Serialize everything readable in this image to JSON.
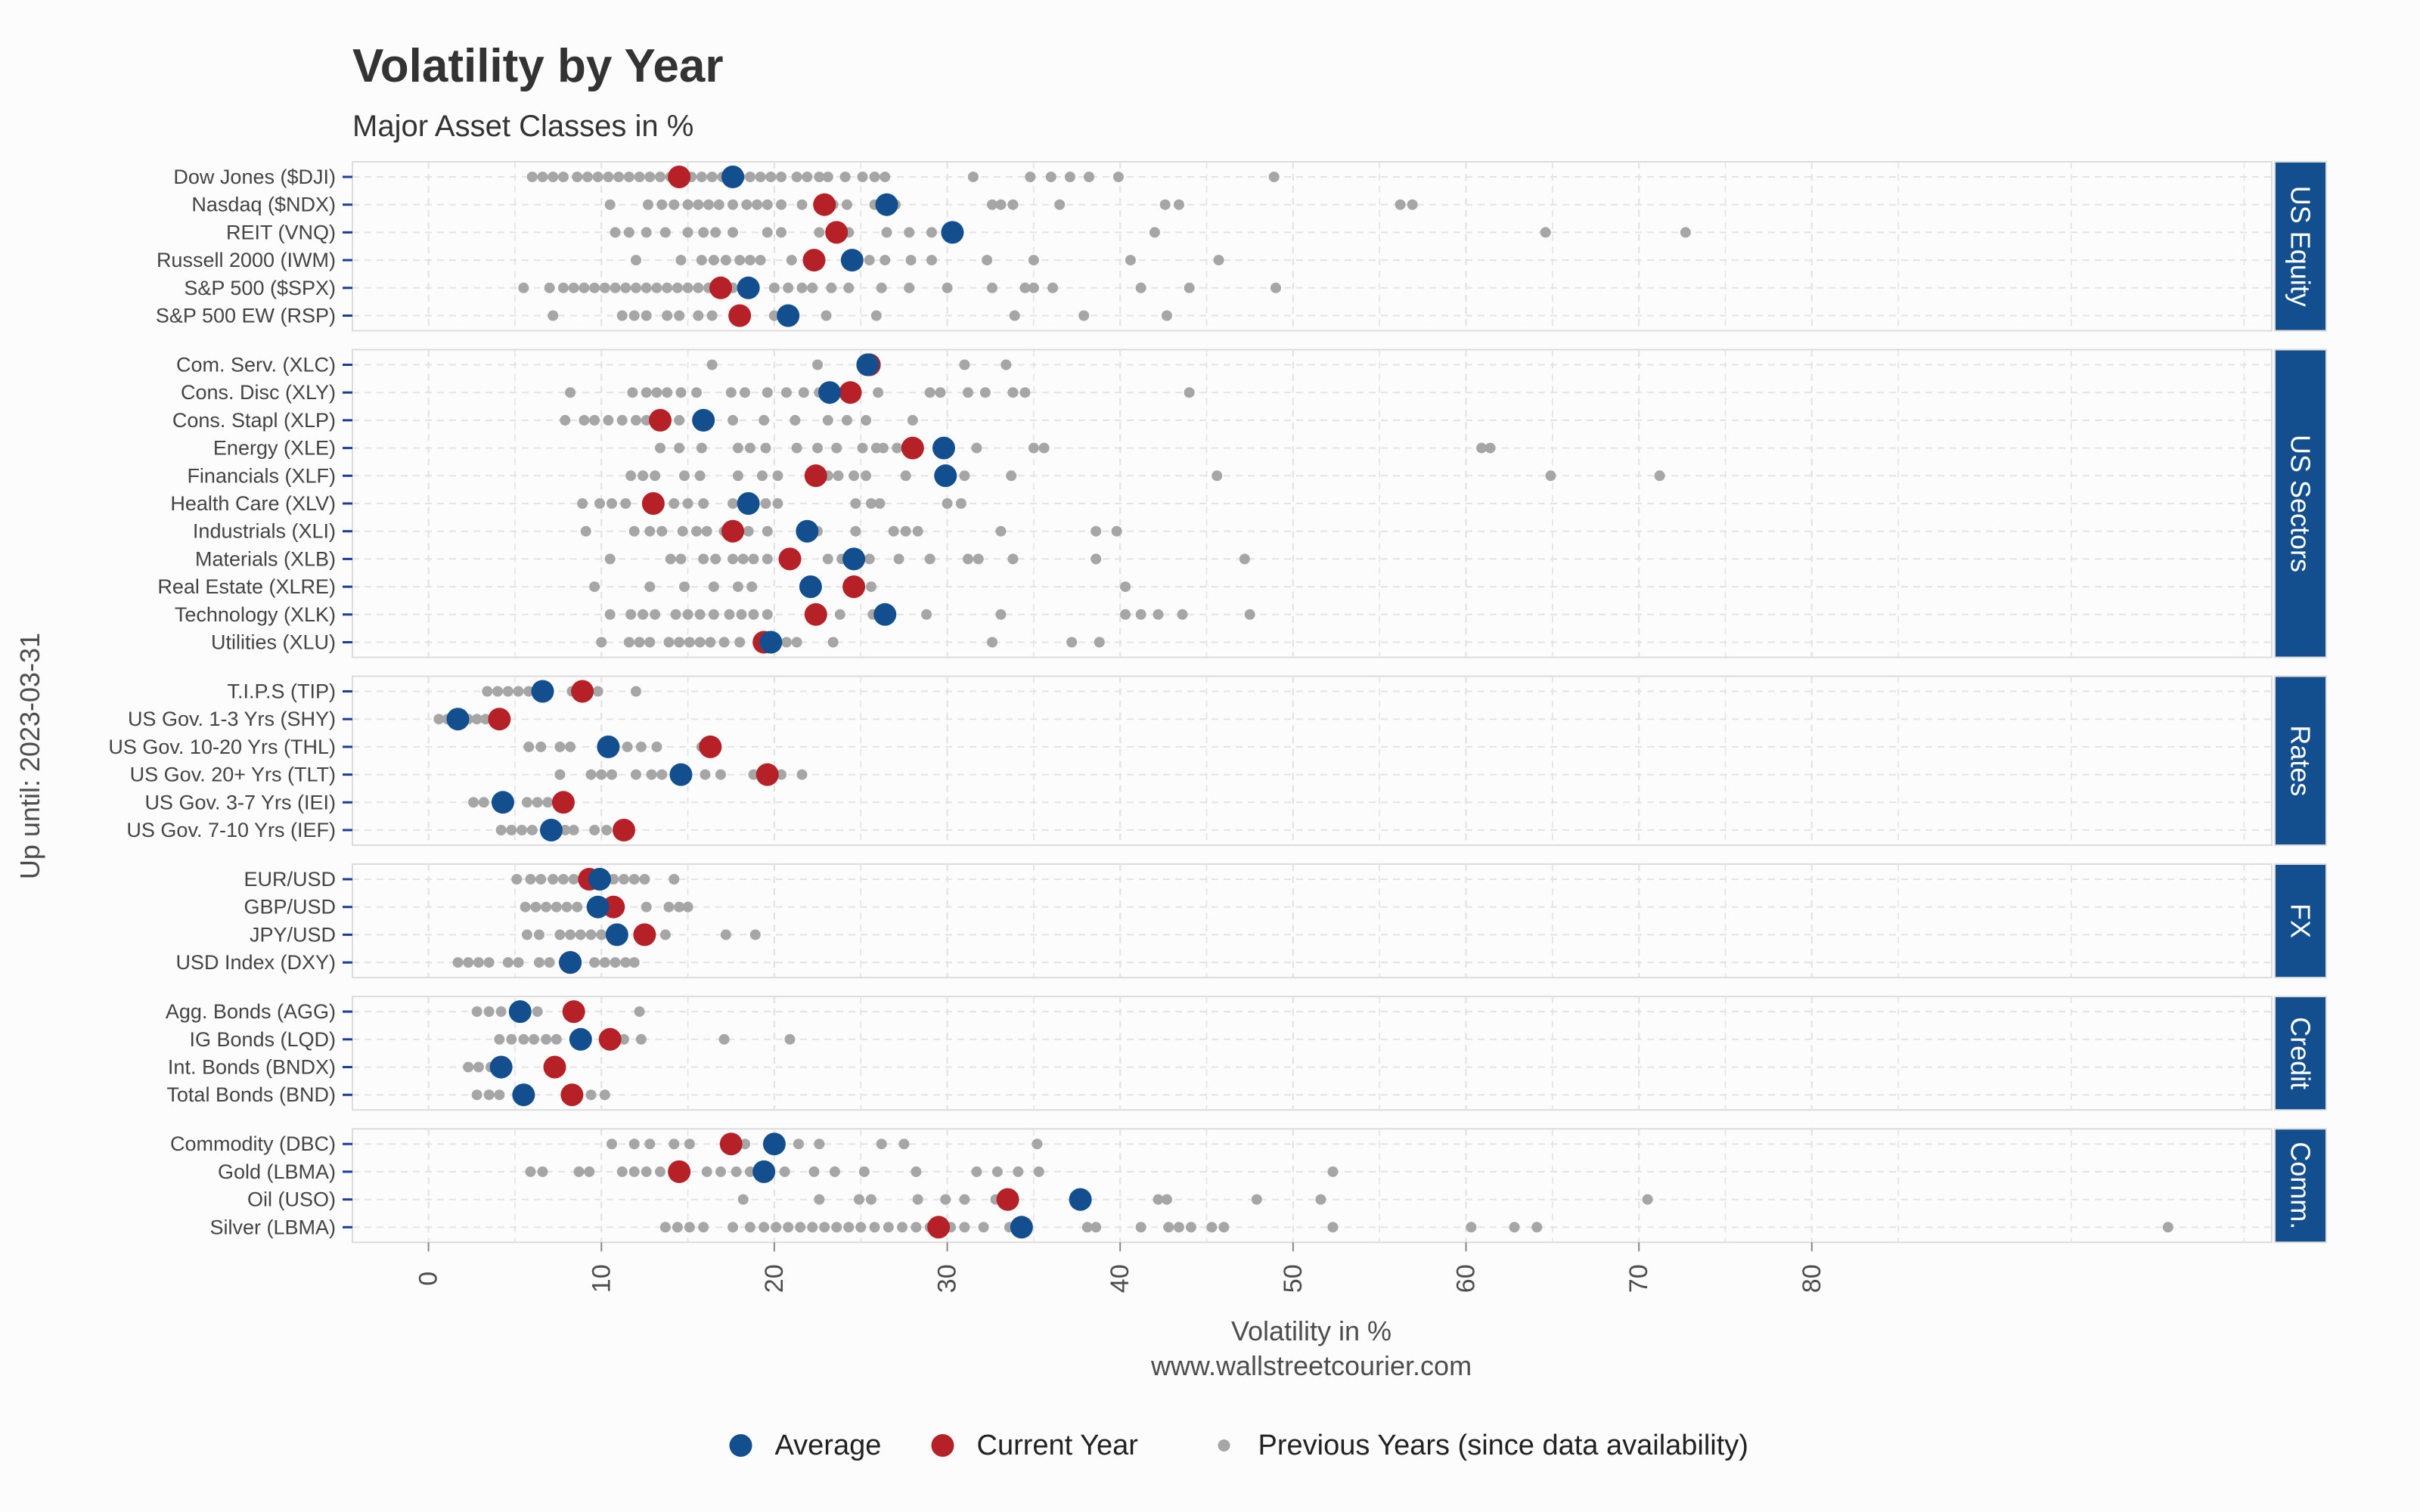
{
  "chart_data": {
    "type": "scatter",
    "title": "Volatility by Year",
    "subtitle": "Major Asset Classes in %",
    "xlabel": "Volatility in %",
    "caption": "www.wallstreetcourier.com",
    "ylabel": "Up until: 2023-03-31",
    "xlim": [
      -4.4,
      106.6
    ],
    "xticks": [
      0,
      10,
      20,
      30,
      40,
      50,
      60,
      70,
      80
    ],
    "grid": true,
    "legend_position": "bottom",
    "colors": {
      "average": "#134e8f",
      "current": "#b62127",
      "previous": "#a6a6a6",
      "strip": "#134e8f"
    },
    "legend": [
      {
        "key": "average",
        "label": "Average"
      },
      {
        "key": "current",
        "label": "Current Year"
      },
      {
        "key": "previous",
        "label": "Previous Years (since data availability)"
      }
    ],
    "panels": [
      {
        "name": "US Equity",
        "items": [
          {
            "label": "Dow Jones ($DJI)",
            "average": 17.6,
            "current": 14.5,
            "previous": [
              6.0,
              6.6,
              7.2,
              7.8,
              8.6,
              9.2,
              9.8,
              10.4,
              11.0,
              11.6,
              12.2,
              12.8,
              13.4,
              14.0,
              14.6,
              15.2,
              15.8,
              16.4,
              17.0,
              18.0,
              18.6,
              19.2,
              19.8,
              20.4,
              21.3,
              21.9,
              22.6,
              23.1,
              24.1,
              25.1,
              25.8,
              26.4,
              31.5,
              34.8,
              36.0,
              37.1,
              38.2,
              39.9,
              48.9
            ]
          },
          {
            "label": "Nasdaq ($NDX)",
            "average": 26.5,
            "current": 22.9,
            "previous": [
              10.5,
              12.7,
              13.5,
              14.2,
              15.0,
              15.6,
              16.2,
              16.8,
              17.6,
              18.4,
              19.0,
              19.6,
              20.4,
              21.6,
              22.6,
              23.4,
              24.2,
              25.8,
              27.0,
              32.6,
              33.1,
              33.8,
              36.5,
              42.6,
              43.4,
              56.2,
              56.9
            ]
          },
          {
            "label": "REIT (VNQ)",
            "average": 30.3,
            "current": 23.6,
            "previous": [
              10.8,
              11.6,
              12.6,
              13.7,
              15.0,
              15.9,
              16.6,
              17.6,
              19.6,
              20.4,
              22.6,
              24.3,
              26.5,
              27.8,
              29.1,
              42.0,
              64.6,
              72.7
            ]
          },
          {
            "label": "Russell 2000 (IWM)",
            "average": 24.5,
            "current": 22.3,
            "previous": [
              12.0,
              14.6,
              15.8,
              16.5,
              17.2,
              18.0,
              18.6,
              19.2,
              21.0,
              25.5,
              26.4,
              27.9,
              29.1,
              32.3,
              35.0,
              40.6,
              45.7
            ]
          },
          {
            "label": "S&P 500 ($SPX)",
            "average": 18.5,
            "current": 16.9,
            "previous": [
              5.5,
              7.0,
              7.8,
              8.4,
              9.0,
              9.6,
              10.2,
              10.8,
              11.4,
              12.0,
              12.6,
              13.2,
              13.8,
              14.4,
              15.0,
              15.6,
              16.2,
              17.6,
              20.0,
              20.8,
              21.6,
              22.2,
              23.3,
              24.3,
              26.2,
              27.8,
              30.0,
              32.6,
              34.5,
              35.0,
              36.1,
              41.2,
              44.0,
              49.0
            ]
          },
          {
            "label": "S&P 500 EW (RSP)",
            "average": 20.8,
            "current": 18.0,
            "previous": [
              7.2,
              11.2,
              11.9,
              12.6,
              13.8,
              14.5,
              15.6,
              16.4,
              20.0,
              23.0,
              25.9,
              33.9,
              37.9,
              42.7
            ]
          }
        ]
      },
      {
        "name": "US Sectors",
        "items": [
          {
            "label": "Com. Serv. (XLC)",
            "average": 25.4,
            "current": 25.5,
            "previous": [
              16.4,
              22.5,
              31.0,
              33.4
            ]
          },
          {
            "label": "Cons. Disc (XLY)",
            "average": 23.2,
            "current": 24.4,
            "previous": [
              8.2,
              11.8,
              12.6,
              13.2,
              13.8,
              14.6,
              15.5,
              17.5,
              18.3,
              19.6,
              20.7,
              21.7,
              22.6,
              26.0,
              29.0,
              29.6,
              31.2,
              32.2,
              33.8,
              34.5,
              44.0
            ]
          },
          {
            "label": "Cons. Stapl (XLP)",
            "average": 15.9,
            "current": 13.4,
            "previous": [
              7.9,
              9.0,
              9.6,
              10.4,
              11.2,
              12.0,
              12.6,
              14.5,
              17.6,
              19.4,
              21.2,
              23.1,
              24.2,
              25.3,
              28.0
            ]
          },
          {
            "label": "Energy (XLE)",
            "average": 29.8,
            "current": 28.0,
            "previous": [
              13.4,
              14.5,
              15.8,
              17.9,
              18.6,
              19.5,
              21.3,
              22.5,
              23.6,
              25.1,
              25.9,
              26.3,
              27.1,
              27.6,
              31.7,
              35.0,
              35.6,
              60.9,
              61.4
            ]
          },
          {
            "label": "Financials (XLF)",
            "average": 29.9,
            "current": 22.4,
            "previous": [
              11.7,
              12.4,
              13.1,
              14.8,
              15.7,
              17.9,
              19.3,
              20.2,
              23.1,
              23.7,
              24.6,
              25.3,
              27.6,
              31.0,
              33.7,
              45.6,
              64.9,
              71.2
            ]
          },
          {
            "label": "Health Care (XLV)",
            "average": 18.5,
            "current": 13.0,
            "previous": [
              8.9,
              9.9,
              10.6,
              11.4,
              14.2,
              15.0,
              15.9,
              17.6,
              18.7,
              19.5,
              20.2,
              24.7,
              25.6,
              26.1,
              30.0,
              30.8
            ]
          },
          {
            "label": "Industrials (XLI)",
            "average": 21.9,
            "current": 17.6,
            "previous": [
              9.1,
              11.9,
              12.8,
              13.5,
              14.7,
              15.5,
              16.1,
              17.1,
              18.5,
              19.6,
              22.5,
              24.7,
              26.9,
              27.6,
              28.3,
              33.1,
              38.6,
              39.8
            ]
          },
          {
            "label": "Materials (XLB)",
            "average": 24.6,
            "current": 20.9,
            "previous": [
              10.5,
              14.0,
              14.6,
              15.9,
              16.6,
              17.6,
              18.2,
              18.8,
              19.6,
              23.1,
              23.9,
              25.5,
              27.2,
              29.0,
              31.2,
              31.8,
              33.8,
              38.6,
              47.2
            ]
          },
          {
            "label": "Real Estate (XLRE)",
            "average": 22.1,
            "current": 24.6,
            "previous": [
              9.6,
              12.8,
              14.8,
              16.5,
              17.9,
              18.7,
              25.6,
              40.3
            ]
          },
          {
            "label": "Technology (XLK)",
            "average": 26.4,
            "current": 22.4,
            "previous": [
              10.5,
              11.7,
              12.4,
              13.1,
              14.3,
              15.0,
              15.7,
              16.5,
              17.4,
              18.1,
              18.8,
              19.6,
              23.8,
              25.7,
              28.8,
              33.1,
              40.3,
              41.2,
              42.2,
              43.6,
              47.5
            ]
          },
          {
            "label": "Utilities (XLU)",
            "average": 19.8,
            "current": 19.4,
            "previous": [
              10.0,
              11.6,
              12.2,
              12.8,
              13.9,
              14.5,
              15.1,
              15.7,
              16.3,
              17.1,
              18.0,
              20.7,
              21.3,
              23.4,
              32.6,
              37.2,
              38.8
            ]
          }
        ]
      },
      {
        "name": "Rates",
        "items": [
          {
            "label": "T.I.P.S (TIP)",
            "average": 6.6,
            "current": 8.9,
            "previous": [
              3.4,
              4.0,
              4.6,
              5.2,
              5.8,
              8.3,
              9.8,
              12.0
            ]
          },
          {
            "label": "US Gov. 1-3 Yrs (SHY)",
            "average": 1.7,
            "current": 4.1,
            "previous": [
              0.6,
              1.1,
              2.3,
              2.8,
              3.3
            ]
          },
          {
            "label": "US Gov. 10-20 Yrs (THL)",
            "average": 10.4,
            "current": 16.3,
            "previous": [
              5.8,
              6.5,
              7.6,
              8.2,
              11.5,
              12.3,
              13.2,
              15.8
            ]
          },
          {
            "label": "US Gov. 20+ Yrs (TLT)",
            "average": 14.6,
            "current": 19.6,
            "previous": [
              7.6,
              9.4,
              10.0,
              10.6,
              12.0,
              12.9,
              13.5,
              16.0,
              16.9,
              18.8,
              20.4,
              21.6
            ]
          },
          {
            "label": "US Gov. 3-7 Yrs (IEI)",
            "average": 4.3,
            "current": 7.8,
            "previous": [
              2.6,
              3.2,
              5.7,
              6.3,
              6.9
            ]
          },
          {
            "label": "US Gov. 7-10 Yrs (IEF)",
            "average": 7.1,
            "current": 11.3,
            "previous": [
              4.2,
              4.8,
              5.4,
              6.0,
              7.9,
              8.4,
              9.6,
              10.3
            ]
          }
        ]
      },
      {
        "name": "FX",
        "items": [
          {
            "label": "EUR/USD",
            "average": 9.9,
            "current": 9.3,
            "previous": [
              5.1,
              5.9,
              6.5,
              7.2,
              7.8,
              8.4,
              10.7,
              11.3,
              11.9,
              12.5,
              14.2
            ]
          },
          {
            "label": "GBP/USD",
            "average": 9.8,
            "current": 10.7,
            "previous": [
              5.6,
              6.2,
              6.8,
              7.4,
              8.0,
              8.6,
              12.6,
              13.9,
              14.5,
              15.0
            ]
          },
          {
            "label": "JPY/USD",
            "average": 10.9,
            "current": 12.5,
            "previous": [
              5.7,
              6.4,
              7.6,
              8.2,
              8.8,
              9.4,
              10.0,
              13.7,
              17.2,
              18.9
            ]
          },
          {
            "label": "USD Index (DXY)",
            "average": 8.2,
            "current": 8.2,
            "previous": [
              1.7,
              2.3,
              2.9,
              3.5,
              4.6,
              5.2,
              6.4,
              7.0,
              9.6,
              10.2,
              10.8,
              11.4,
              11.9
            ]
          }
        ]
      },
      {
        "name": "Credit",
        "items": [
          {
            "label": "Agg. Bonds (AGG)",
            "average": 5.3,
            "current": 8.4,
            "previous": [
              2.8,
              3.5,
              4.2,
              6.3,
              12.2
            ]
          },
          {
            "label": "IG Bonds (LQD)",
            "average": 8.8,
            "current": 10.5,
            "previous": [
              4.1,
              4.8,
              5.5,
              6.1,
              6.8,
              7.4,
              11.3,
              12.3,
              17.1,
              20.9
            ]
          },
          {
            "label": "Int. Bonds (BNDX)",
            "average": 4.2,
            "current": 7.3,
            "previous": [
              2.3,
              2.9,
              3.6
            ]
          },
          {
            "label": "Total Bonds (BND)",
            "average": 5.5,
            "current": 8.3,
            "previous": [
              2.8,
              3.5,
              4.1,
              9.4,
              10.2
            ]
          }
        ]
      },
      {
        "name": "Comm.",
        "items": [
          {
            "label": "Commodity (DBC)",
            "average": 20.0,
            "current": 17.5,
            "previous": [
              10.6,
              11.9,
              12.8,
              14.2,
              15.1,
              18.3,
              21.4,
              22.6,
              26.2,
              27.5,
              35.2
            ]
          },
          {
            "label": "Gold (LBMA)",
            "average": 19.4,
            "current": 14.5,
            "previous": [
              5.9,
              6.6,
              8.7,
              9.3,
              11.2,
              11.9,
              12.6,
              13.4,
              16.1,
              16.9,
              17.8,
              18.6,
              20.6,
              22.3,
              23.5,
              25.2,
              28.2,
              31.7,
              32.9,
              34.1,
              35.3,
              52.3
            ]
          },
          {
            "label": "Oil (USO)",
            "average": 37.7,
            "current": 33.5,
            "previous": [
              18.2,
              22.6,
              24.9,
              25.6,
              28.3,
              29.9,
              31.0,
              32.8,
              42.2,
              42.7,
              47.9,
              51.6,
              70.5
            ]
          },
          {
            "label": "Silver (LBMA)",
            "average": 34.3,
            "current": 29.5,
            "previous": [
              13.7,
              14.4,
              15.1,
              15.9,
              17.6,
              18.6,
              19.4,
              20.1,
              20.8,
              21.5,
              22.2,
              22.9,
              23.6,
              24.3,
              25.0,
              25.8,
              26.6,
              27.4,
              28.2,
              29.0,
              30.2,
              31.0,
              32.1,
              33.6,
              38.1,
              38.6,
              41.2,
              42.8,
              43.4,
              44.1,
              45.3,
              46.0,
              52.3,
              60.3,
              62.8,
              64.1,
              100.6
            ]
          }
        ]
      }
    ]
  }
}
